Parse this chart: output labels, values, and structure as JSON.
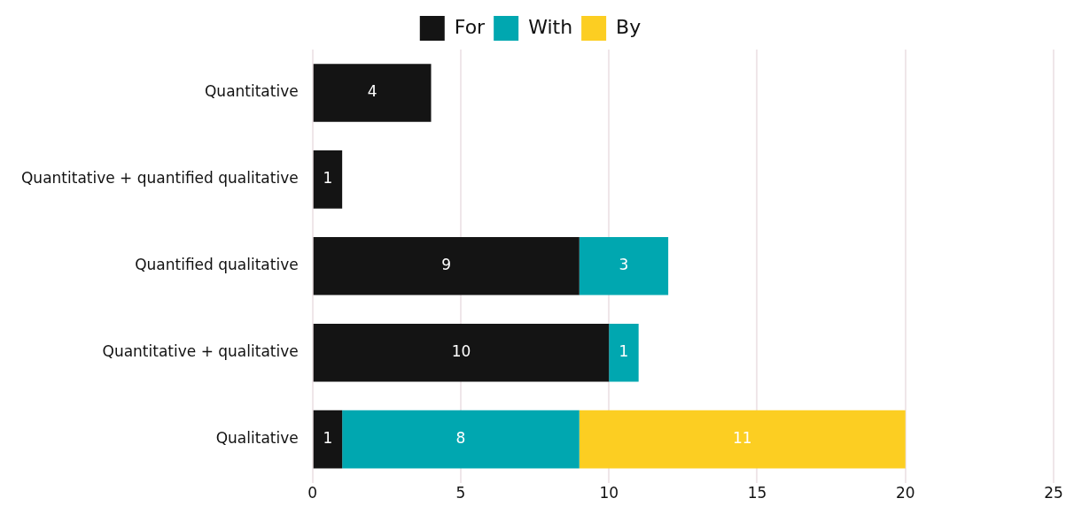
{
  "chart_data": {
    "type": "bar",
    "orientation": "horizontal",
    "stacked": true,
    "categories": [
      "Quantitative",
      "Quantitative + quantified qualitative",
      "Quantified qualitative",
      "Quantitative + qualitative",
      "Qualitative"
    ],
    "series": [
      {
        "name": "For",
        "color": "#141414",
        "values": [
          4,
          1,
          9,
          10,
          1
        ]
      },
      {
        "name": "With",
        "color": "#00a7b0",
        "values": [
          null,
          null,
          3,
          1,
          8
        ]
      },
      {
        "name": "By",
        "color": "#fcce22",
        "values": [
          null,
          null,
          null,
          null,
          11
        ]
      }
    ],
    "xlim": [
      0,
      25
    ],
    "xticks": [
      0,
      5,
      10,
      15,
      20,
      25
    ],
    "grid": "x",
    "legend": "top",
    "data_labels": true
  }
}
